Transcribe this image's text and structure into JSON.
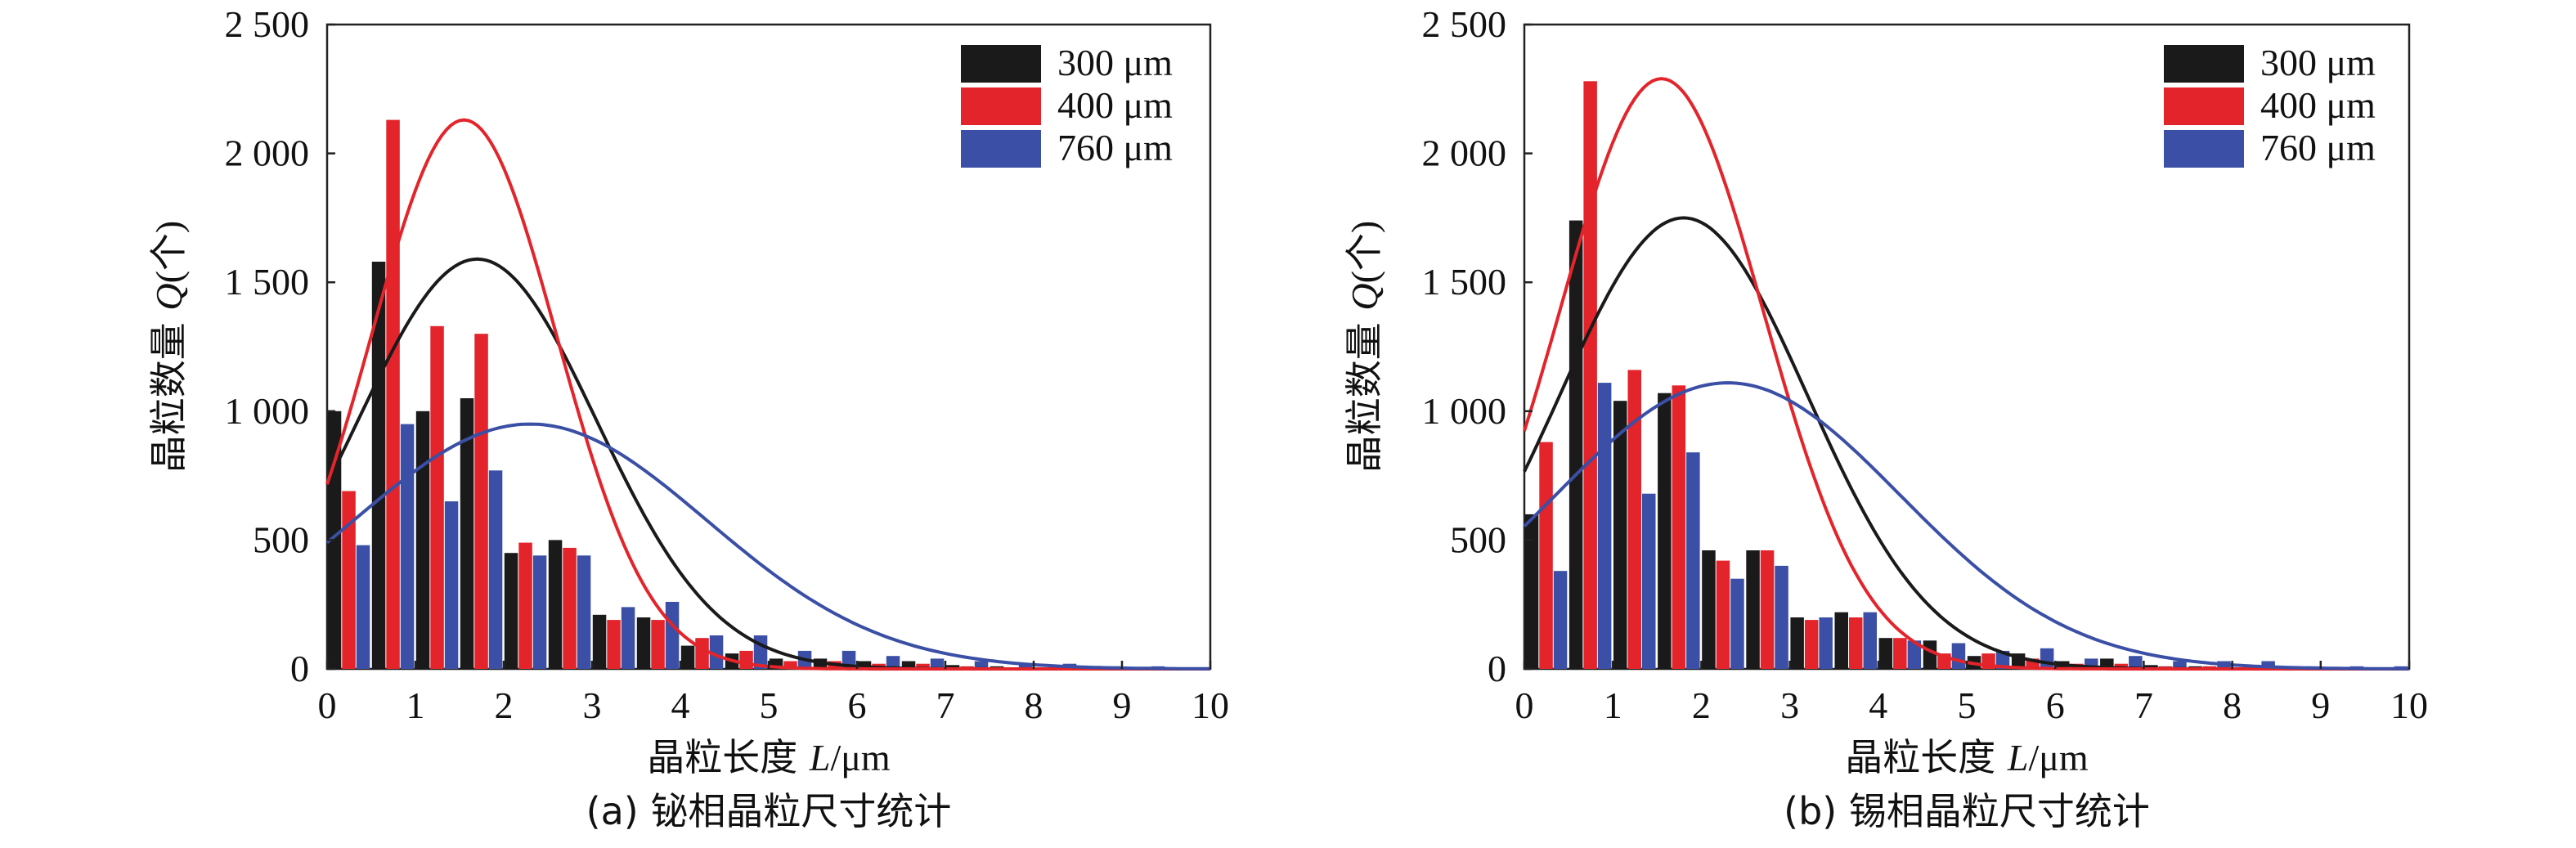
{
  "colors": {
    "black": "#1a1a1a",
    "red": "#e3242b",
    "blue": "#3a4fa5"
  },
  "chart_data": [
    {
      "type": "bar",
      "caption": "(a) 铋相晶粒尺寸统计",
      "xlabel_cn": "晶粒长度 ",
      "xlabel_var": "L",
      "xlabel_unit": "/μm",
      "ylabel_cn": "晶粒数量 ",
      "ylabel_var": "Q",
      "ylabel_unit": "(个)",
      "xlim": [
        0,
        10
      ],
      "ylim": [
        0,
        2500
      ],
      "xticks": [
        "0",
        "1",
        "2",
        "3",
        "4",
        "5",
        "6",
        "7",
        "8",
        "9",
        "10"
      ],
      "yticks": [
        {
          "value": 0,
          "label": "0"
        },
        {
          "value": 500,
          "label": "500"
        },
        {
          "value": 1000,
          "label": "1 000"
        },
        {
          "value": 1500,
          "label": "1 500"
        },
        {
          "value": 2000,
          "label": "2 000"
        },
        {
          "value": 2500,
          "label": "2 500"
        }
      ],
      "legend_position": "top-right",
      "bin_centers": [
        0.25,
        0.75,
        1.25,
        1.75,
        2.25,
        2.75,
        3.25,
        3.75,
        4.25,
        4.75,
        5.25,
        5.75,
        6.25,
        6.75,
        7.25,
        7.75,
        8.25,
        8.75,
        9.25,
        9.75
      ],
      "series": [
        {
          "name": "300 μm",
          "color": "black",
          "values": [
            1000,
            1580,
            1000,
            1050,
            450,
            500,
            210,
            200,
            90,
            60,
            40,
            40,
            30,
            30,
            15,
            10,
            5,
            10,
            5,
            5
          ],
          "fit": {
            "peak": 1590,
            "mu": 1.7,
            "sigma": 1.35
          }
        },
        {
          "name": "400 μm",
          "color": "red",
          "values": [
            690,
            2130,
            1330,
            1300,
            490,
            470,
            190,
            190,
            120,
            70,
            30,
            30,
            20,
            20,
            10,
            5,
            5,
            5,
            5,
            5
          ],
          "fit": {
            "peak": 2130,
            "mu": 1.55,
            "sigma": 1.05
          }
        },
        {
          "name": "760 μm",
          "color": "blue",
          "values": [
            480,
            950,
            650,
            770,
            440,
            440,
            240,
            260,
            130,
            130,
            70,
            70,
            50,
            40,
            30,
            20,
            20,
            10,
            10,
            5
          ],
          "fit": {
            "peak": 950,
            "mu": 2.3,
            "sigma": 2.0
          }
        }
      ]
    },
    {
      "type": "bar",
      "caption": "(b) 锡相晶粒尺寸统计",
      "xlabel_cn": "晶粒长度 ",
      "xlabel_var": "L",
      "xlabel_unit": "/μm",
      "ylabel_cn": "晶粒数量 ",
      "ylabel_var": "Q",
      "ylabel_unit": "(个)",
      "xlim": [
        0,
        10
      ],
      "ylim": [
        0,
        2500
      ],
      "xticks": [
        "0",
        "1",
        "2",
        "3",
        "4",
        "5",
        "6",
        "7",
        "8",
        "9",
        "10"
      ],
      "yticks": [
        {
          "value": 0,
          "label": "0"
        },
        {
          "value": 500,
          "label": "500"
        },
        {
          "value": 1000,
          "label": "1 000"
        },
        {
          "value": 1500,
          "label": "1 500"
        },
        {
          "value": 2000,
          "label": "2 000"
        },
        {
          "value": 2500,
          "label": "2 500"
        }
      ],
      "legend_position": "top-right",
      "bin_centers": [
        0.25,
        0.75,
        1.25,
        1.75,
        2.25,
        2.75,
        3.25,
        3.75,
        4.25,
        4.75,
        5.25,
        5.75,
        6.25,
        6.75,
        7.25,
        7.75,
        8.25,
        8.75,
        9.25,
        9.75
      ],
      "series": [
        {
          "name": "300 μm",
          "color": "black",
          "values": [
            600,
            1740,
            1040,
            1070,
            460,
            460,
            200,
            220,
            120,
            110,
            50,
            60,
            30,
            40,
            15,
            10,
            5,
            10,
            5,
            5
          ],
          "fit": {
            "peak": 1750,
            "mu": 1.8,
            "sigma": 1.4
          }
        },
        {
          "name": "400 μm",
          "color": "red",
          "values": [
            880,
            2280,
            1160,
            1100,
            420,
            460,
            190,
            200,
            120,
            60,
            60,
            40,
            20,
            20,
            10,
            10,
            5,
            5,
            5,
            5
          ],
          "fit": {
            "peak": 2290,
            "mu": 1.55,
            "sigma": 1.15
          }
        },
        {
          "name": "760 μm",
          "color": "blue",
          "values": [
            380,
            1110,
            680,
            840,
            350,
            400,
            200,
            220,
            110,
            100,
            70,
            80,
            40,
            50,
            30,
            30,
            30,
            10,
            10,
            10
          ],
          "fit": {
            "peak": 1110,
            "mu": 2.3,
            "sigma": 1.95
          }
        }
      ]
    }
  ]
}
